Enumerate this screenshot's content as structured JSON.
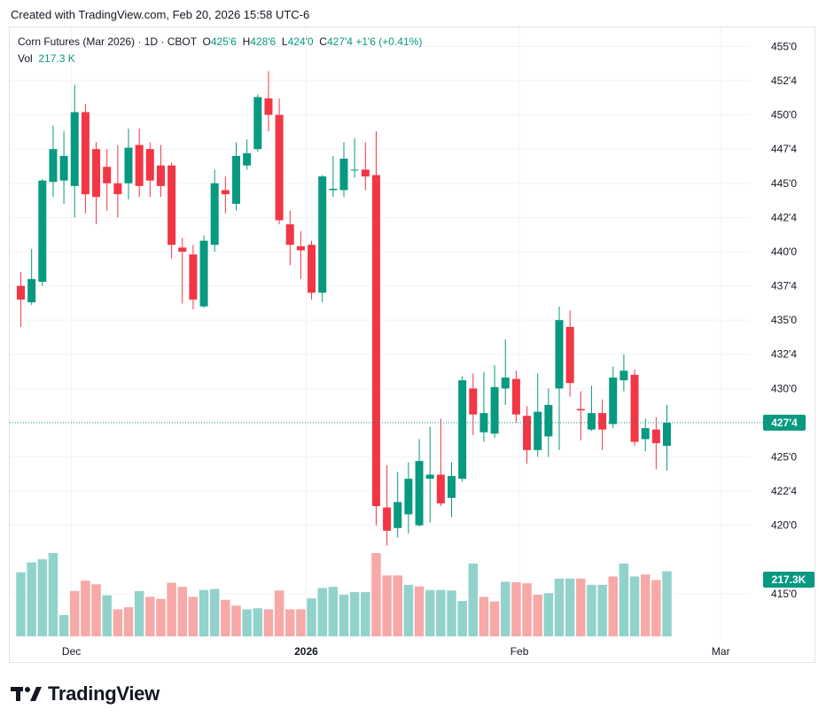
{
  "header": {
    "caption": "Created with TradingView.com, Feb 20, 2026 15:58 UTC-6"
  },
  "legend": {
    "symbol": "Corn Futures (Mar 2026) · 1D · CBOT",
    "o_label": "O",
    "o_value": "425'6",
    "h_label": "H",
    "h_value": "428'6",
    "l_label": "L",
    "l_value": "424'0",
    "c_label": "C",
    "c_value": "427'4",
    "change": "+1'6 (+0.41%)",
    "vol_label": "Vol",
    "vol_value": "217.3 K"
  },
  "branding": {
    "logo_text": "TradingView"
  },
  "colors": {
    "up": "#089981",
    "down": "#f23645",
    "up_vol": "#92d2cc",
    "down_vol": "#f7a9a7",
    "grid": "#f0f3fa",
    "text": "#131722"
  },
  "chart_data": {
    "type": "candlestick",
    "price_axis": {
      "ylim": [
        413.5,
        456
      ],
      "ticks": [
        {
          "value": 455,
          "label": "455'0"
        },
        {
          "value": 452.5,
          "label": "452'4"
        },
        {
          "value": 450,
          "label": "450'0"
        },
        {
          "value": 447.5,
          "label": "447'4"
        },
        {
          "value": 445,
          "label": "445'0"
        },
        {
          "value": 442.5,
          "label": "442'4"
        },
        {
          "value": 440,
          "label": "440'0"
        },
        {
          "value": 437.5,
          "label": "437'4"
        },
        {
          "value": 435,
          "label": "435'0"
        },
        {
          "value": 432.5,
          "label": "432'4"
        },
        {
          "value": 430,
          "label": "430'0"
        },
        {
          "value": 425,
          "label": "425'0"
        },
        {
          "value": 422.5,
          "label": "422'4"
        },
        {
          "value": 420,
          "label": "420'0"
        },
        {
          "value": 415,
          "label": "415'0"
        }
      ]
    },
    "time_axis": [
      {
        "bar": 4.7,
        "label": "Dec",
        "bold": false
      },
      {
        "bar": 26.5,
        "label": "2026",
        "bold": true
      },
      {
        "bar": 46.3,
        "label": "Feb",
        "bold": false
      },
      {
        "bar": 65.0,
        "label": "Mar",
        "bold": false
      }
    ],
    "last_price": {
      "value": 427.5,
      "label": "427'4"
    },
    "last_volume": {
      "label": "217.3K"
    },
    "volume_max": 217.3,
    "candles": [
      [
        437.5,
        438.5,
        434.5,
        436.5
      ],
      [
        436.3,
        440.2,
        436.1,
        438.0
      ],
      [
        437.8,
        445.3,
        437.5,
        445.2
      ],
      [
        445.1,
        449.2,
        444.0,
        447.5
      ],
      [
        445.2,
        448.8,
        443.5,
        447.0
      ],
      [
        444.8,
        452.2,
        442.5,
        450.2
      ],
      [
        450.2,
        450.8,
        442.8,
        444.2
      ],
      [
        447.5,
        448.0,
        442.0,
        444.0
      ],
      [
        446.2,
        447.5,
        443.0,
        445.0
      ],
      [
        445.0,
        447.8,
        442.5,
        444.2
      ],
      [
        445.0,
        449.0,
        443.8,
        447.6
      ],
      [
        447.8,
        449.0,
        444.0,
        444.8
      ],
      [
        447.5,
        448.0,
        444.0,
        445.2
      ],
      [
        446.3,
        447.8,
        444.0,
        444.8
      ],
      [
        446.3,
        446.5,
        439.5,
        440.5
      ],
      [
        440.3,
        441.0,
        436.2,
        440.0
      ],
      [
        439.8,
        440.5,
        435.8,
        436.5
      ],
      [
        436.0,
        441.2,
        435.9,
        440.8
      ],
      [
        440.5,
        446.0,
        440.0,
        445.0
      ],
      [
        444.5,
        445.5,
        442.8,
        444.2
      ],
      [
        443.5,
        448.0,
        443.0,
        447.0
      ],
      [
        446.3,
        448.2,
        446.0,
        447.2
      ],
      [
        447.5,
        451.5,
        447.3,
        451.3
      ],
      [
        451.2,
        453.2,
        448.8,
        450.0
      ],
      [
        450.0,
        451.2,
        442.0,
        442.3
      ],
      [
        442.0,
        443.0,
        439.0,
        440.5
      ],
      [
        440.4,
        441.5,
        438.0,
        440.1
      ],
      [
        440.5,
        440.8,
        436.5,
        437.0
      ],
      [
        437.0,
        445.6,
        436.3,
        445.5
      ],
      [
        444.5,
        447.0,
        444.0,
        444.6
      ],
      [
        444.5,
        448.0,
        444.0,
        446.8
      ],
      [
        446.0,
        448.3,
        445.4,
        446.0
      ],
      [
        446.0,
        448.0,
        444.5,
        445.5
      ],
      [
        445.6,
        448.8,
        420.0,
        421.4
      ],
      [
        421.3,
        424.4,
        418.5,
        419.6
      ],
      [
        419.8,
        423.9,
        419.1,
        421.7
      ],
      [
        420.8,
        424.6,
        419.4,
        423.4
      ],
      [
        420.0,
        426.3,
        419.9,
        424.7
      ],
      [
        423.4,
        427.2,
        420.2,
        423.7
      ],
      [
        423.7,
        427.8,
        421.4,
        421.6
      ],
      [
        422.0,
        424.6,
        420.6,
        423.6
      ],
      [
        423.4,
        430.9,
        423.2,
        430.6
      ],
      [
        430.0,
        431.1,
        426.6,
        428.1
      ],
      [
        426.8,
        431.2,
        426.1,
        428.2
      ],
      [
        426.7,
        431.7,
        426.4,
        430.1
      ],
      [
        430.0,
        433.6,
        428.8,
        430.8
      ],
      [
        430.7,
        431.3,
        427.5,
        428.1
      ],
      [
        428.0,
        428.7,
        424.5,
        425.5
      ],
      [
        425.5,
        431.1,
        425.0,
        428.3
      ],
      [
        426.5,
        430.0,
        425.0,
        428.8
      ],
      [
        430.0,
        436.0,
        425.5,
        435.0
      ],
      [
        434.5,
        435.7,
        429.4,
        430.4
      ],
      [
        428.5,
        429.8,
        426.2,
        428.4
      ],
      [
        427.0,
        430.2,
        426.9,
        428.2
      ],
      [
        428.2,
        429.2,
        425.5,
        427.0
      ],
      [
        427.4,
        431.6,
        427.1,
        430.8
      ],
      [
        430.6,
        432.5,
        429.8,
        431.3
      ],
      [
        431.0,
        431.4,
        425.8,
        426.1
      ],
      [
        426.3,
        427.8,
        425.4,
        427.1
      ],
      [
        427.0,
        427.9,
        424.1,
        426.0
      ],
      [
        425.8,
        428.8,
        424.0,
        427.5
      ]
    ],
    "volumes": [
      [
        123,
        1
      ],
      [
        142,
        1
      ],
      [
        148,
        1
      ],
      [
        160,
        1
      ],
      [
        41,
        1
      ],
      [
        87,
        0
      ],
      [
        107,
        0
      ],
      [
        100,
        0
      ],
      [
        79,
        1
      ],
      [
        52,
        0
      ],
      [
        56,
        0
      ],
      [
        87,
        1
      ],
      [
        76,
        0
      ],
      [
        72,
        0
      ],
      [
        103,
        0
      ],
      [
        95,
        0
      ],
      [
        76,
        0
      ],
      [
        89,
        1
      ],
      [
        91,
        1
      ],
      [
        70,
        0
      ],
      [
        59,
        0
      ],
      [
        52,
        1
      ],
      [
        54,
        1
      ],
      [
        52,
        0
      ],
      [
        88,
        0
      ],
      [
        52,
        0
      ],
      [
        52,
        0
      ],
      [
        73,
        1
      ],
      [
        93,
        1
      ],
      [
        95,
        1
      ],
      [
        80,
        1
      ],
      [
        85,
        1
      ],
      [
        85,
        1
      ],
      [
        160,
        0
      ],
      [
        117,
        0
      ],
      [
        117,
        0
      ],
      [
        99,
        1
      ],
      [
        96,
        0
      ],
      [
        89,
        1
      ],
      [
        89,
        1
      ],
      [
        88,
        1
      ],
      [
        68,
        1
      ],
      [
        140,
        1
      ],
      [
        76,
        0
      ],
      [
        67,
        0
      ],
      [
        105,
        1
      ],
      [
        104,
        0
      ],
      [
        102,
        0
      ],
      [
        80,
        0
      ],
      [
        83,
        1
      ],
      [
        111,
        1
      ],
      [
        111,
        1
      ],
      [
        111,
        0
      ],
      [
        99,
        1
      ],
      [
        99,
        1
      ],
      [
        115,
        0
      ],
      [
        140,
        1
      ],
      [
        115,
        1
      ],
      [
        119,
        0
      ],
      [
        108,
        0
      ],
      [
        125,
        1
      ]
    ]
  }
}
